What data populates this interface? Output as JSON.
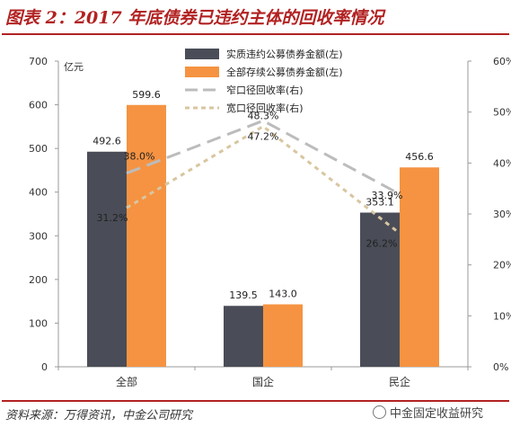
{
  "header": {
    "title": "图表 2：2017 年底债券已违约主体的回收率情况"
  },
  "footer": {
    "source": "资料来源：万得资讯，中金公司研究",
    "brand": "中金固定收益研究",
    "brand_icon": "wechat-logo-icon"
  },
  "colors": {
    "title_red": "#b22222",
    "bar_dark": "#4a4d57",
    "bar_orange": "#f59342",
    "line_narrow": "#bcbcbc",
    "line_wide": "#d8c6a0"
  },
  "chart_data": {
    "type": "bar",
    "categories": [
      "全部",
      "国企",
      "民企"
    ],
    "left_axis": {
      "unit": "亿元",
      "ylim": [
        0,
        700
      ],
      "ticks": [
        "0",
        "100",
        "200",
        "300",
        "400",
        "500",
        "600",
        "700"
      ]
    },
    "right_axis": {
      "ylim": [
        0,
        60
      ],
      "ticks": [
        "0%",
        "10%",
        "20%",
        "30%",
        "40%",
        "50%",
        "60%"
      ]
    },
    "series": [
      {
        "name": "实质违约公募债券金额(左)",
        "kind": "bar",
        "axis": "left",
        "values": [
          492.6,
          139.5,
          353.1
        ],
        "labels": [
          "492.6",
          "139.5",
          "353.1"
        ],
        "color": "#4a4d57"
      },
      {
        "name": "全部存续公募债券金额(左)",
        "kind": "bar",
        "axis": "left",
        "values": [
          599.6,
          143.0,
          456.6
        ],
        "labels": [
          "599.6",
          "143.0",
          "456.6"
        ],
        "color": "#f59342"
      },
      {
        "name": "窄口径回收率(右)",
        "kind": "line",
        "axis": "right",
        "values": [
          38.0,
          48.3,
          33.9
        ],
        "labels": [
          "38.0%",
          "48.3%",
          "33.9%"
        ],
        "color": "#bcbcbc",
        "dash": "long"
      },
      {
        "name": "宽口径回收率(右)",
        "kind": "line",
        "axis": "right",
        "values": [
          31.2,
          47.2,
          26.2
        ],
        "labels": [
          "31.2%",
          "47.2%",
          "26.2%"
        ],
        "color": "#d8c6a0",
        "dash": "short"
      }
    ],
    "legend_position": "top-center",
    "grid": false
  }
}
